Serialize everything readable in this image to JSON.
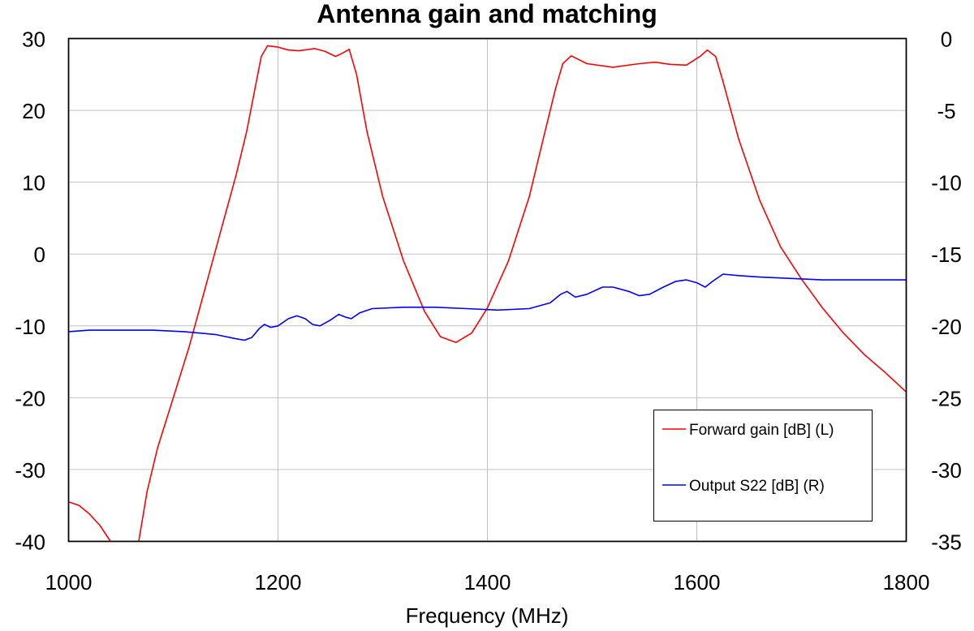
{
  "chart_data": {
    "type": "line",
    "title": "Antenna gain and matching",
    "xlabel": "Frequency (MHz)",
    "ylabel_left": "",
    "ylabel_right": "",
    "xlim": [
      1000,
      1800
    ],
    "ylim_left": [
      -40,
      30
    ],
    "ylim_right": [
      -35,
      0
    ],
    "x_ticks": [
      "1000",
      "1200",
      "1400",
      "1600",
      "1800"
    ],
    "y_left_ticks": [
      "30",
      "20",
      "10",
      "0",
      "-10",
      "-20",
      "-30",
      "-40"
    ],
    "y_right_ticks": [
      "0",
      "-5",
      "-10",
      "-15",
      "-20",
      "-25",
      "-30",
      "-35"
    ],
    "grid": true,
    "legend_position": "bottom-right",
    "series": [
      {
        "name": "Forward gain [dB] (L)",
        "color": "#ff0000",
        "axis": "left",
        "segments": [
          [
            [
              1000,
              -34.5
            ],
            [
              1010,
              -35.0
            ],
            [
              1020,
              -36.2
            ],
            [
              1030,
              -37.8
            ],
            [
              1040,
              -40.0
            ]
          ],
          [
            [
              1067,
              -40.0
            ],
            [
              1075,
              -33
            ],
            [
              1085,
              -27
            ],
            [
              1100,
              -20
            ],
            [
              1115,
              -13
            ],
            [
              1130,
              -5
            ],
            [
              1145,
              3
            ],
            [
              1160,
              11
            ],
            [
              1170,
              17
            ],
            [
              1178,
              23
            ],
            [
              1184,
              27.5
            ],
            [
              1190,
              29.0
            ],
            [
              1200,
              28.8
            ],
            [
              1210,
              28.4
            ],
            [
              1220,
              28.3
            ],
            [
              1235,
              28.6
            ],
            [
              1245,
              28.2
            ],
            [
              1255,
              27.5
            ],
            [
              1262,
              28.0
            ],
            [
              1268,
              28.5
            ],
            [
              1275,
              25
            ],
            [
              1285,
              17
            ],
            [
              1300,
              8
            ],
            [
              1320,
              -1
            ],
            [
              1340,
              -8
            ],
            [
              1355,
              -11.5
            ],
            [
              1370,
              -12.3
            ],
            [
              1385,
              -11
            ],
            [
              1400,
              -7.5
            ],
            [
              1420,
              -1
            ],
            [
              1440,
              8
            ],
            [
              1455,
              17
            ],
            [
              1465,
              23
            ],
            [
              1472,
              26.5
            ],
            [
              1480,
              27.6
            ],
            [
              1495,
              26.5
            ],
            [
              1520,
              26.0
            ],
            [
              1545,
              26.5
            ],
            [
              1560,
              26.7
            ],
            [
              1575,
              26.4
            ],
            [
              1590,
              26.3
            ],
            [
              1603,
              27.5
            ],
            [
              1610,
              28.4
            ],
            [
              1618,
              27.5
            ],
            [
              1625,
              24
            ],
            [
              1640,
              16
            ],
            [
              1660,
              7.5
            ],
            [
              1680,
              1
            ],
            [
              1700,
              -3.5
            ],
            [
              1720,
              -7.5
            ],
            [
              1740,
              -11
            ],
            [
              1760,
              -14
            ],
            [
              1780,
              -16.5
            ],
            [
              1800,
              -19.2
            ]
          ]
        ]
      },
      {
        "name": "Output S22 [dB] (R)",
        "color": "#0000ff",
        "axis": "right",
        "segments": [
          [
            [
              1000,
              -20.4
            ],
            [
              1020,
              -20.3
            ],
            [
              1050,
              -20.3
            ],
            [
              1080,
              -20.3
            ],
            [
              1110,
              -20.4
            ],
            [
              1140,
              -20.6
            ],
            [
              1160,
              -20.9
            ],
            [
              1168,
              -21.0
            ],
            [
              1175,
              -20.8
            ],
            [
              1182,
              -20.2
            ],
            [
              1187,
              -19.9
            ],
            [
              1193,
              -20.1
            ],
            [
              1200,
              -20.0
            ],
            [
              1210,
              -19.5
            ],
            [
              1218,
              -19.3
            ],
            [
              1226,
              -19.5
            ],
            [
              1233,
              -19.9
            ],
            [
              1240,
              -20.0
            ],
            [
              1250,
              -19.6
            ],
            [
              1258,
              -19.2
            ],
            [
              1265,
              -19.4
            ],
            [
              1270,
              -19.5
            ],
            [
              1278,
              -19.1
            ],
            [
              1290,
              -18.8
            ],
            [
              1320,
              -18.7
            ],
            [
              1350,
              -18.7
            ],
            [
              1380,
              -18.8
            ],
            [
              1410,
              -18.9
            ],
            [
              1440,
              -18.8
            ],
            [
              1460,
              -18.4
            ],
            [
              1470,
              -17.8
            ],
            [
              1476,
              -17.6
            ],
            [
              1484,
              -18.0
            ],
            [
              1495,
              -17.8
            ],
            [
              1510,
              -17.3
            ],
            [
              1520,
              -17.3
            ],
            [
              1535,
              -17.6
            ],
            [
              1545,
              -17.9
            ],
            [
              1555,
              -17.8
            ],
            [
              1568,
              -17.3
            ],
            [
              1580,
              -16.9
            ],
            [
              1590,
              -16.8
            ],
            [
              1600,
              -17.0
            ],
            [
              1608,
              -17.3
            ],
            [
              1615,
              -16.9
            ],
            [
              1625,
              -16.4
            ],
            [
              1640,
              -16.5
            ],
            [
              1660,
              -16.6
            ],
            [
              1690,
              -16.7
            ],
            [
              1720,
              -16.8
            ],
            [
              1760,
              -16.8
            ],
            [
              1800,
              -16.8
            ]
          ]
        ]
      }
    ]
  }
}
